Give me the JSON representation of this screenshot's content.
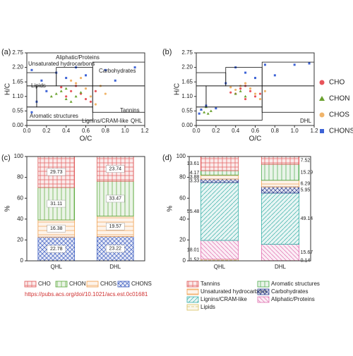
{
  "chart_data": [
    {
      "type": "scatter",
      "panel_label": "(a)",
      "xlabel": "O/C",
      "ylabel": "H/C",
      "xlim": [
        0,
        1.2
      ],
      "xticks": [
        {
          "value": 0,
          "label": "0.0"
        },
        0.2,
        0.4,
        0.6,
        0.8,
        {
          "value": 1,
          "label": "1.0"
        },
        1.2
      ],
      "ylim": [
        0,
        2.75
      ],
      "yticks": [
        {
          "value": 0,
          "label": "0.00"
        },
        0.55,
        {
          "value": 1.1,
          "label": "1.10"
        },
        1.65,
        {
          "value": 2.2,
          "label": "2.20"
        },
        2.75
      ],
      "regions": [
        [
          0,
          0.3,
          1.5,
          2.0
        ],
        [
          0.3,
          0.67,
          1.5,
          2.2
        ],
        [
          0.67,
          1.2,
          1.5,
          2.4
        ],
        [
          0,
          0.1,
          0.7,
          1.5
        ],
        [
          0.1,
          0.67,
          0.7,
          1.5
        ],
        [
          0.67,
          1.2,
          0.5,
          1.5
        ],
        [
          0,
          0.67,
          0.2,
          0.7
        ]
      ],
      "annotations": [
        "Unsaturated hydrocarbons",
        "Aliphatic/Proteins",
        "Carbohydrates",
        "Lipids",
        "Tannins",
        "Aromatic structures",
        "Lignins/CRAM-like",
        "QHL"
      ],
      "series": [
        {
          "name": "CHO",
          "color": "#e8545a",
          "marker": "circle",
          "x": [
            0.45,
            0.55,
            0.6,
            0.5,
            0.65,
            0.4,
            0.7,
            0.35
          ],
          "y": [
            1.3,
            1.2,
            1.0,
            1.5,
            0.9,
            1.1,
            1.3,
            1.45
          ]
        },
        {
          "name": "CHON",
          "color": "#6aa12e",
          "marker": "triangle",
          "x": [
            0.3,
            0.4,
            0.35,
            0.45,
            0.5,
            0.25,
            0.55,
            0.4
          ],
          "y": [
            1.2,
            1.0,
            1.3,
            0.9,
            1.1,
            1.1,
            1.25,
            1.4
          ]
        },
        {
          "name": "CHOS",
          "color": "#f0b46a",
          "marker": "circle",
          "x": [
            0.5,
            0.6,
            0.65,
            0.7,
            0.55,
            0.8,
            0.45,
            0.75
          ],
          "y": [
            1.6,
            1.4,
            1.1,
            0.8,
            1.8,
            1.2,
            1.7,
            1.5
          ]
        },
        {
          "name": "CHONS",
          "color": "#3d63d6",
          "marker": "square",
          "x": [
            0.05,
            0.15,
            0.3,
            0.5,
            0.8,
            1.1,
            0.9,
            0.2,
            0.1,
            0.6,
            0.4,
            0.05
          ],
          "y": [
            2.1,
            1.7,
            2.0,
            2.2,
            2.1,
            2.2,
            1.7,
            1.3,
            0.9,
            1.9,
            1.8,
            0.5
          ]
        }
      ]
    },
    {
      "type": "scatter",
      "panel_label": "(b)",
      "xlabel": "O/C",
      "ylabel": "H/C",
      "legend": true,
      "xlim": [
        0,
        1.2
      ],
      "xticks": [
        {
          "value": 0,
          "label": "0.0"
        },
        0.2,
        0.4,
        0.6,
        0.8,
        {
          "value": 1,
          "label": "1.0"
        },
        1.2
      ],
      "ylim": [
        0,
        2.75
      ],
      "yticks": [
        {
          "value": 0,
          "label": "0.00"
        },
        0.55,
        {
          "value": 1.1,
          "label": "1.10"
        },
        1.65,
        {
          "value": 2.2,
          "label": "2.20"
        },
        2.75
      ],
      "regions": [
        [
          0,
          0.3,
          1.5,
          2.0
        ],
        [
          0.3,
          0.67,
          1.5,
          2.2
        ],
        [
          0.67,
          1.2,
          1.5,
          2.4
        ],
        [
          0,
          0.1,
          0.7,
          1.5
        ],
        [
          0.1,
          0.67,
          0.7,
          1.5
        ],
        [
          0.67,
          1.2,
          0.5,
          1.5
        ],
        [
          0,
          0.67,
          0.2,
          0.7
        ]
      ],
      "annotations": [
        "DHL"
      ],
      "series": [
        {
          "name": "CHO",
          "color": "#e8545a",
          "marker": "circle",
          "x": [
            0.4,
            0.5,
            0.55,
            0.45,
            0.6,
            0.35,
            0.65,
            0.5
          ],
          "y": [
            1.2,
            1.0,
            1.3,
            1.4,
            1.1,
            1.25,
            1.2,
            1.5
          ]
        },
        {
          "name": "CHON",
          "color": "#6aa12e",
          "marker": "triangle",
          "x": [
            0.05,
            0.08,
            0.1,
            0.12,
            0.15,
            0.4,
            0.5,
            0.45
          ],
          "y": [
            0.6,
            0.5,
            0.7,
            0.45,
            0.55,
            1.2,
            1.1,
            1.3
          ]
        },
        {
          "name": "CHOS",
          "color": "#f0b46a",
          "marker": "circle",
          "x": [
            0.45,
            0.55,
            0.6,
            0.5,
            0.7,
            0.4,
            0.65,
            0.35
          ],
          "y": [
            1.5,
            1.4,
            1.2,
            1.6,
            1.3,
            1.35,
            1.0,
            1.45
          ]
        },
        {
          "name": "CHONS",
          "color": "#3d63d6",
          "marker": "square",
          "x": [
            0.05,
            0.1,
            0.03,
            0.4,
            0.7,
            1.0,
            0.6,
            0.3,
            0.8,
            0.2,
            1.15,
            0.5
          ],
          "y": [
            0.6,
            0.75,
            0.45,
            2.2,
            2.3,
            2.3,
            1.8,
            1.6,
            1.9,
            0.65,
            2.35,
            2.0
          ]
        }
      ]
    },
    {
      "type": "stacked_bar",
      "panel_label": "(c)",
      "ylabel": "%",
      "label_position": "inside",
      "categories": [
        "QHL",
        "DHL"
      ],
      "ylim": [
        0,
        100
      ],
      "yticks": [
        0,
        20,
        40,
        60,
        80,
        100
      ],
      "source": "https://pubs.acs.org/doi/10.1021/acs.est.0c01681",
      "series": [
        {
          "name": "CHO",
          "color": "#e05a5a",
          "values": [
            29.73,
            23.74
          ]
        },
        {
          "name": "CHON",
          "color": "#5aa83a",
          "values": [
            31.11,
            33.47
          ]
        },
        {
          "name": "CHOS",
          "color": "#f0a050",
          "values": [
            16.38,
            19.57
          ]
        },
        {
          "name": "CHONS",
          "color": "#3f5fc0",
          "values": [
            22.78,
            23.22
          ]
        }
      ]
    },
    {
      "type": "stacked_bar",
      "panel_label": "(d)",
      "ylabel": "%",
      "label_position": "outside",
      "categories": [
        "QHL",
        "DHL"
      ],
      "ylim": [
        0,
        100
      ],
      "yticks": [
        0,
        20,
        40,
        60,
        80,
        100
      ],
      "series": [
        {
          "name": "Tannins",
          "color": "#e05a5a",
          "values": [
            13.61,
            7.52
          ]
        },
        {
          "name": "Aromatic structures",
          "color": "#4aa84a",
          "values": [
            4.17,
            15.29
          ]
        },
        {
          "name": "Unsaturated hydrocarbons",
          "color": "#f0a050",
          "values": [
            3.88,
            6.29
          ]
        },
        {
          "name": "Carbohydrates",
          "color": "#2f3f8f",
          "values": [
            3.33,
            5.95
          ]
        },
        {
          "name": "Lignins/CRAM-like",
          "color": "#3ab0a8",
          "values": [
            55.48,
            49.14
          ]
        },
        {
          "name": "Aliphatic/Proteins",
          "color": "#e070b0",
          "values": [
            18.01,
            15.67
          ]
        },
        {
          "name": "Lipids",
          "color": "#d8c060",
          "values": [
            1.52,
            0.14
          ]
        }
      ]
    }
  ]
}
